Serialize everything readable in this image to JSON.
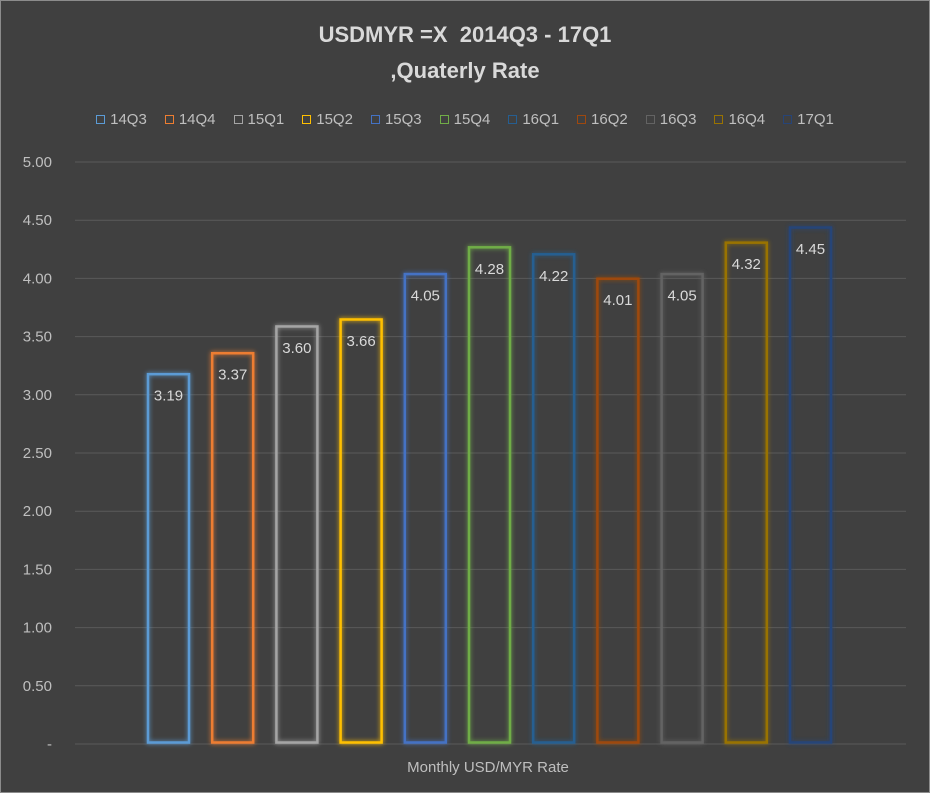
{
  "chart_data": {
    "type": "bar",
    "title": "USDMYR =X  2014Q3 - 17Q1",
    "subtitle": ",Quaterly Rate",
    "xlabel": "Monthly USD/MYR Rate",
    "ylabel": "",
    "ylim": [
      0,
      5
    ],
    "yticks": [
      "-",
      "0.50",
      "1.00",
      "1.50",
      "2.00",
      "2.50",
      "3.00",
      "3.50",
      "4.00",
      "4.50",
      "5.00"
    ],
    "grid": true,
    "legend_position": "top",
    "categories": [
      "14Q3",
      "14Q4",
      "15Q1",
      "15Q2",
      "15Q3",
      "15Q4",
      "16Q1",
      "16Q2",
      "16Q3",
      "16Q4",
      "17Q1"
    ],
    "values": [
      3.19,
      3.37,
      3.6,
      3.66,
      4.05,
      4.28,
      4.22,
      4.01,
      4.05,
      4.32,
      4.45
    ],
    "value_labels": [
      "3.19",
      "3.37",
      "3.60",
      "3.66",
      "4.05",
      "4.28",
      "4.22",
      "4.01",
      "4.05",
      "4.32",
      "4.45"
    ],
    "colors": [
      "#5b9bd5",
      "#ed7d31",
      "#a5a5a5",
      "#ffc000",
      "#4472c4",
      "#70ad47",
      "#255e91",
      "#9e480e",
      "#636363",
      "#997300",
      "#264478"
    ]
  }
}
